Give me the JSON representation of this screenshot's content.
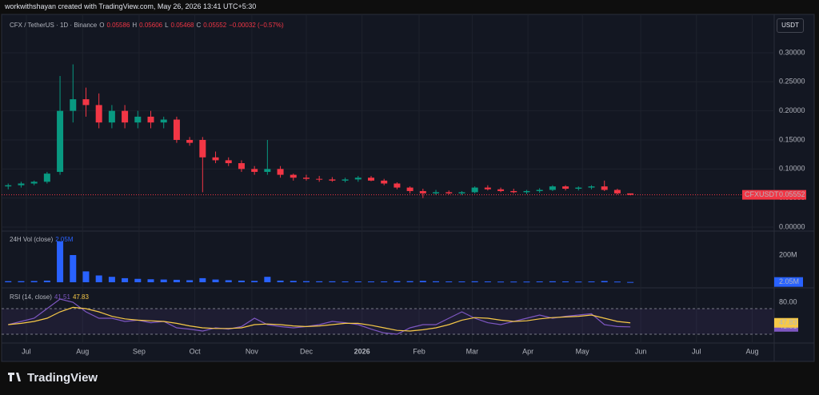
{
  "header": {
    "text": "workwithshayan created with TradingView.com, May 26, 2026 13:41 UTC+5:30",
    "currency": "USDT",
    "logo": "TradingView"
  },
  "chart_data": [
    {
      "type": "candlestick",
      "symbol": "CFX / TetherUS · 1D · Binance",
      "ohlc_labels": [
        "O",
        "H",
        "L",
        "C"
      ],
      "ohlc": [
        "0.05586",
        "0.05606",
        "0.05468",
        "0.05552"
      ],
      "change": "−0.00032 (−0.57%)",
      "price_tag": "CFXUSDT",
      "up_color": "#089981",
      "down_color": "#f23645",
      "x": [
        0,
        1,
        2,
        3,
        4,
        5,
        6,
        7,
        8,
        9,
        10,
        11,
        12,
        13,
        14,
        15,
        16,
        17,
        18,
        19,
        20,
        21,
        22,
        23,
        24,
        25,
        26,
        27,
        28,
        29,
        30,
        31,
        32,
        33,
        34,
        35,
        36,
        37,
        38,
        39,
        40,
        41,
        42,
        43,
        44,
        45,
        46,
        47,
        48
      ],
      "open": [
        0.07,
        0.072,
        0.075,
        0.078,
        0.095,
        0.2,
        0.22,
        0.21,
        0.18,
        0.2,
        0.18,
        0.19,
        0.18,
        0.185,
        0.15,
        0.15,
        0.12,
        0.115,
        0.11,
        0.1,
        0.095,
        0.1,
        0.09,
        0.085,
        0.083,
        0.082,
        0.08,
        0.082,
        0.085,
        0.08,
        0.075,
        0.068,
        0.062,
        0.058,
        0.06,
        0.058,
        0.06,
        0.068,
        0.065,
        0.062,
        0.06,
        0.062,
        0.064,
        0.07,
        0.066,
        0.068,
        0.07,
        0.064,
        0.058
      ],
      "high": [
        0.075,
        0.078,
        0.08,
        0.095,
        0.26,
        0.28,
        0.24,
        0.23,
        0.21,
        0.21,
        0.2,
        0.2,
        0.19,
        0.19,
        0.155,
        0.155,
        0.13,
        0.12,
        0.115,
        0.105,
        0.15,
        0.105,
        0.092,
        0.09,
        0.088,
        0.086,
        0.085,
        0.088,
        0.088,
        0.083,
        0.077,
        0.07,
        0.066,
        0.064,
        0.063,
        0.062,
        0.07,
        0.072,
        0.068,
        0.066,
        0.064,
        0.067,
        0.072,
        0.072,
        0.07,
        0.072,
        0.08,
        0.066,
        0.05606
      ],
      "low": [
        0.065,
        0.068,
        0.072,
        0.075,
        0.09,
        0.18,
        0.19,
        0.17,
        0.17,
        0.17,
        0.17,
        0.17,
        0.17,
        0.145,
        0.14,
        0.06,
        0.11,
        0.105,
        0.095,
        0.09,
        0.09,
        0.085,
        0.08,
        0.08,
        0.078,
        0.078,
        0.077,
        0.078,
        0.079,
        0.072,
        0.065,
        0.058,
        0.05,
        0.055,
        0.056,
        0.055,
        0.058,
        0.063,
        0.06,
        0.058,
        0.057,
        0.059,
        0.062,
        0.063,
        0.063,
        0.065,
        0.062,
        0.056,
        0.05468
      ],
      "close": [
        0.072,
        0.075,
        0.078,
        0.092,
        0.2,
        0.22,
        0.21,
        0.18,
        0.2,
        0.18,
        0.19,
        0.18,
        0.185,
        0.15,
        0.145,
        0.12,
        0.115,
        0.11,
        0.1,
        0.095,
        0.1,
        0.09,
        0.085,
        0.083,
        0.082,
        0.08,
        0.082,
        0.085,
        0.08,
        0.075,
        0.068,
        0.062,
        0.058,
        0.06,
        0.058,
        0.06,
        0.068,
        0.065,
        0.062,
        0.06,
        0.062,
        0.064,
        0.07,
        0.066,
        0.068,
        0.07,
        0.064,
        0.058,
        0.05552
      ],
      "xlim": [
        -0.2,
        59.1
      ],
      "xticks": [
        {
          "value": 1.4,
          "label": "Jul"
        },
        {
          "value": 5.74,
          "label": "Aug"
        },
        {
          "value": 10.1,
          "label": "Sep"
        },
        {
          "value": 14.4,
          "label": "Oct"
        },
        {
          "value": 18.8,
          "label": "Nov"
        },
        {
          "value": 23.0,
          "label": "Dec"
        },
        {
          "value": 27.3,
          "label": "2026"
        },
        {
          "value": 31.7,
          "label": "Feb"
        },
        {
          "value": 35.8,
          "label": "Mar"
        },
        {
          "value": 40.1,
          "label": "Apr"
        },
        {
          "value": 44.3,
          "label": "May"
        },
        {
          "value": 48.8,
          "label": "Jun"
        },
        {
          "value": 53.1,
          "label": "Jul"
        },
        {
          "value": 57.4,
          "label": "Aug"
        }
      ],
      "ylim": [
        -0.0055,
        0.3605
      ],
      "yticks": [
        {
          "value": 0,
          "label": "0.00000"
        },
        {
          "value": 0.05,
          "label": "0.05000"
        },
        {
          "value": 0.1,
          "label": "0.10000"
        },
        {
          "value": 0.15,
          "label": "0.15000"
        },
        {
          "value": 0.2,
          "label": "0.20000"
        },
        {
          "value": 0.25,
          "label": "0.25000"
        },
        {
          "value": 0.3,
          "label": "0.30000"
        }
      ],
      "grid": true
    },
    {
      "type": "bar",
      "title": "24H Vol (close)",
      "color": "#2962ff",
      "x": [
        0,
        1,
        2,
        3,
        4,
        5,
        6,
        7,
        8,
        9,
        10,
        11,
        12,
        13,
        14,
        15,
        16,
        17,
        18,
        19,
        20,
        21,
        22,
        23,
        24,
        25,
        26,
        27,
        28,
        29,
        30,
        31,
        32,
        33,
        34,
        35,
        36,
        37,
        38,
        39,
        40,
        41,
        42,
        43,
        44,
        45,
        46,
        47,
        48
      ],
      "values": [
        8,
        8,
        9,
        12,
        300,
        200,
        80,
        50,
        40,
        30,
        25,
        22,
        20,
        18,
        15,
        30,
        20,
        15,
        12,
        10,
        40,
        12,
        10,
        8,
        7,
        7,
        6,
        6,
        6,
        6,
        8,
        8,
        10,
        7,
        6,
        6,
        7,
        6,
        5,
        5,
        5,
        6,
        7,
        6,
        5,
        6,
        9,
        5,
        2.05
      ],
      "last_label": "2.05M",
      "ylim": [
        -29.4,
        370.6
      ],
      "yticks": [
        {
          "value": 200,
          "label": "200M"
        }
      ]
    },
    {
      "type": "line",
      "title": "RSI (14, close)",
      "x": [
        0,
        1,
        2,
        3,
        4,
        5,
        6,
        7,
        8,
        9,
        10,
        11,
        12,
        13,
        14,
        15,
        16,
        17,
        18,
        19,
        20,
        21,
        22,
        23,
        24,
        25,
        26,
        27,
        28,
        29,
        30,
        31,
        32,
        33,
        34,
        35,
        36,
        37,
        38,
        39,
        40,
        41,
        42,
        43,
        44,
        45,
        46,
        47,
        48
      ],
      "series": [
        {
          "name": "41.51",
          "color": "#7e57c2",
          "values": [
            45,
            50,
            55,
            70,
            85,
            80,
            65,
            55,
            55,
            50,
            52,
            48,
            50,
            40,
            38,
            35,
            40,
            38,
            42,
            55,
            45,
            42,
            40,
            42,
            45,
            50,
            48,
            45,
            38,
            32,
            30,
            40,
            45,
            45,
            55,
            65,
            55,
            48,
            45,
            50,
            55,
            60,
            55,
            58,
            60,
            62,
            45,
            42,
            41.51
          ]
        },
        {
          "name": "47.83",
          "color": "#f7c948",
          "values": [
            45,
            47,
            50,
            55,
            65,
            72,
            70,
            65,
            58,
            54,
            52,
            51,
            50,
            47,
            43,
            40,
            39,
            39,
            40,
            45,
            46,
            45,
            43,
            42,
            43,
            45,
            47,
            47,
            44,
            40,
            36,
            35,
            37,
            40,
            45,
            52,
            56,
            55,
            52,
            50,
            51,
            54,
            56,
            57,
            58,
            60,
            55,
            50,
            47.83
          ]
        }
      ],
      "levels": [
        70,
        30
      ],
      "ylim": [
        17.5,
        100
      ],
      "yticks": [
        {
          "value": 80,
          "label": "80.00"
        }
      ]
    }
  ]
}
